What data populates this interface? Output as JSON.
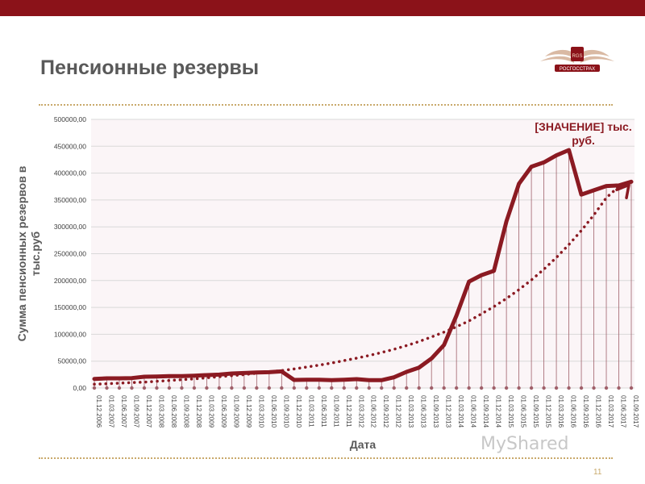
{
  "slide": {
    "title": "Пенсионные резервы",
    "page_number": "11",
    "logo_text": "РОСГОССТРАХ",
    "logo_badge": "RGS",
    "watermark": "MyShared"
  },
  "colors": {
    "topbar": "#8b1219",
    "series": "#8b1a22",
    "trend": "#8b1a22",
    "dots": "#c9a96b",
    "plot_bg": "#fbf5f7"
  },
  "chart_data": {
    "type": "line",
    "ylabel": "Сумма пенсионных резервов в тыс.руб",
    "xlabel": "Дата",
    "ylim": [
      0,
      500000
    ],
    "yticks": [
      "0,00",
      "50000,00",
      "100000,00",
      "150000,00",
      "200000,00",
      "250000,00",
      "300000,00",
      "350000,00",
      "400000,00",
      "450000,00",
      "500000,00"
    ],
    "categories": [
      "01.12.2006",
      "01.03.2007",
      "01.06.2007",
      "01.09.2007",
      "01.12.2007",
      "01.03.2008",
      "01.06.2008",
      "01.09.2008",
      "01.12.2008",
      "01.03.2009",
      "01.06.2009",
      "01.09.2009",
      "01.12.2009",
      "01.03.2010",
      "01.06.2010",
      "01.09.2010",
      "01.12.2010",
      "01.03.2011",
      "01.06.2011",
      "01.09.2011",
      "01.12.2011",
      "01.03.2012",
      "01.06.2012",
      "01.09.2012",
      "01.12.2012",
      "01.03.2013",
      "01.06.2013",
      "01.09.2013",
      "01.12.2013",
      "01.03.2014",
      "01.06.2014",
      "01.09.2014",
      "01.12.2014",
      "01.03.2015",
      "01.06.2015",
      "01.09.2015",
      "01.12.2015",
      "01.03.2016",
      "01.06.2016",
      "01.09.2016",
      "01.12.2016",
      "01.03.2017",
      "01.06.2017",
      "01.09.2017"
    ],
    "series": [
      {
        "values": [
          17000,
          18000,
          18000,
          18500,
          21000,
          21500,
          22000,
          22000,
          23000,
          24000,
          25000,
          27000,
          28000,
          29000,
          29500,
          31000,
          15000,
          15500,
          15500,
          14500,
          15500,
          16500,
          14500,
          14500,
          20000,
          30000,
          38000,
          55000,
          80000,
          135000,
          198000,
          210000,
          218000,
          310000,
          380000,
          412000,
          420000,
          433000,
          443000,
          360000,
          368000,
          376000,
          377000,
          384000
        ]
      },
      {
        "style": "dotted",
        "values": [
          7000,
          8000,
          9000,
          10000,
          11000,
          12500,
          14000,
          15500,
          17000,
          19000,
          21000,
          23000,
          25000,
          27500,
          30000,
          32500,
          35500,
          39000,
          42500,
          46500,
          51000,
          55500,
          60500,
          66000,
          72000,
          79000,
          86500,
          95000,
          104000,
          114000,
          125000,
          138000,
          151500,
          166500,
          183000,
          201000,
          221000,
          243000,
          267000,
          293000,
          322000,
          354000,
          375000,
          382000
        ]
      }
    ],
    "annotation": {
      "label": "[ЗНАЧЕНИЕ] тыс.",
      "label_line2": "руб."
    }
  }
}
